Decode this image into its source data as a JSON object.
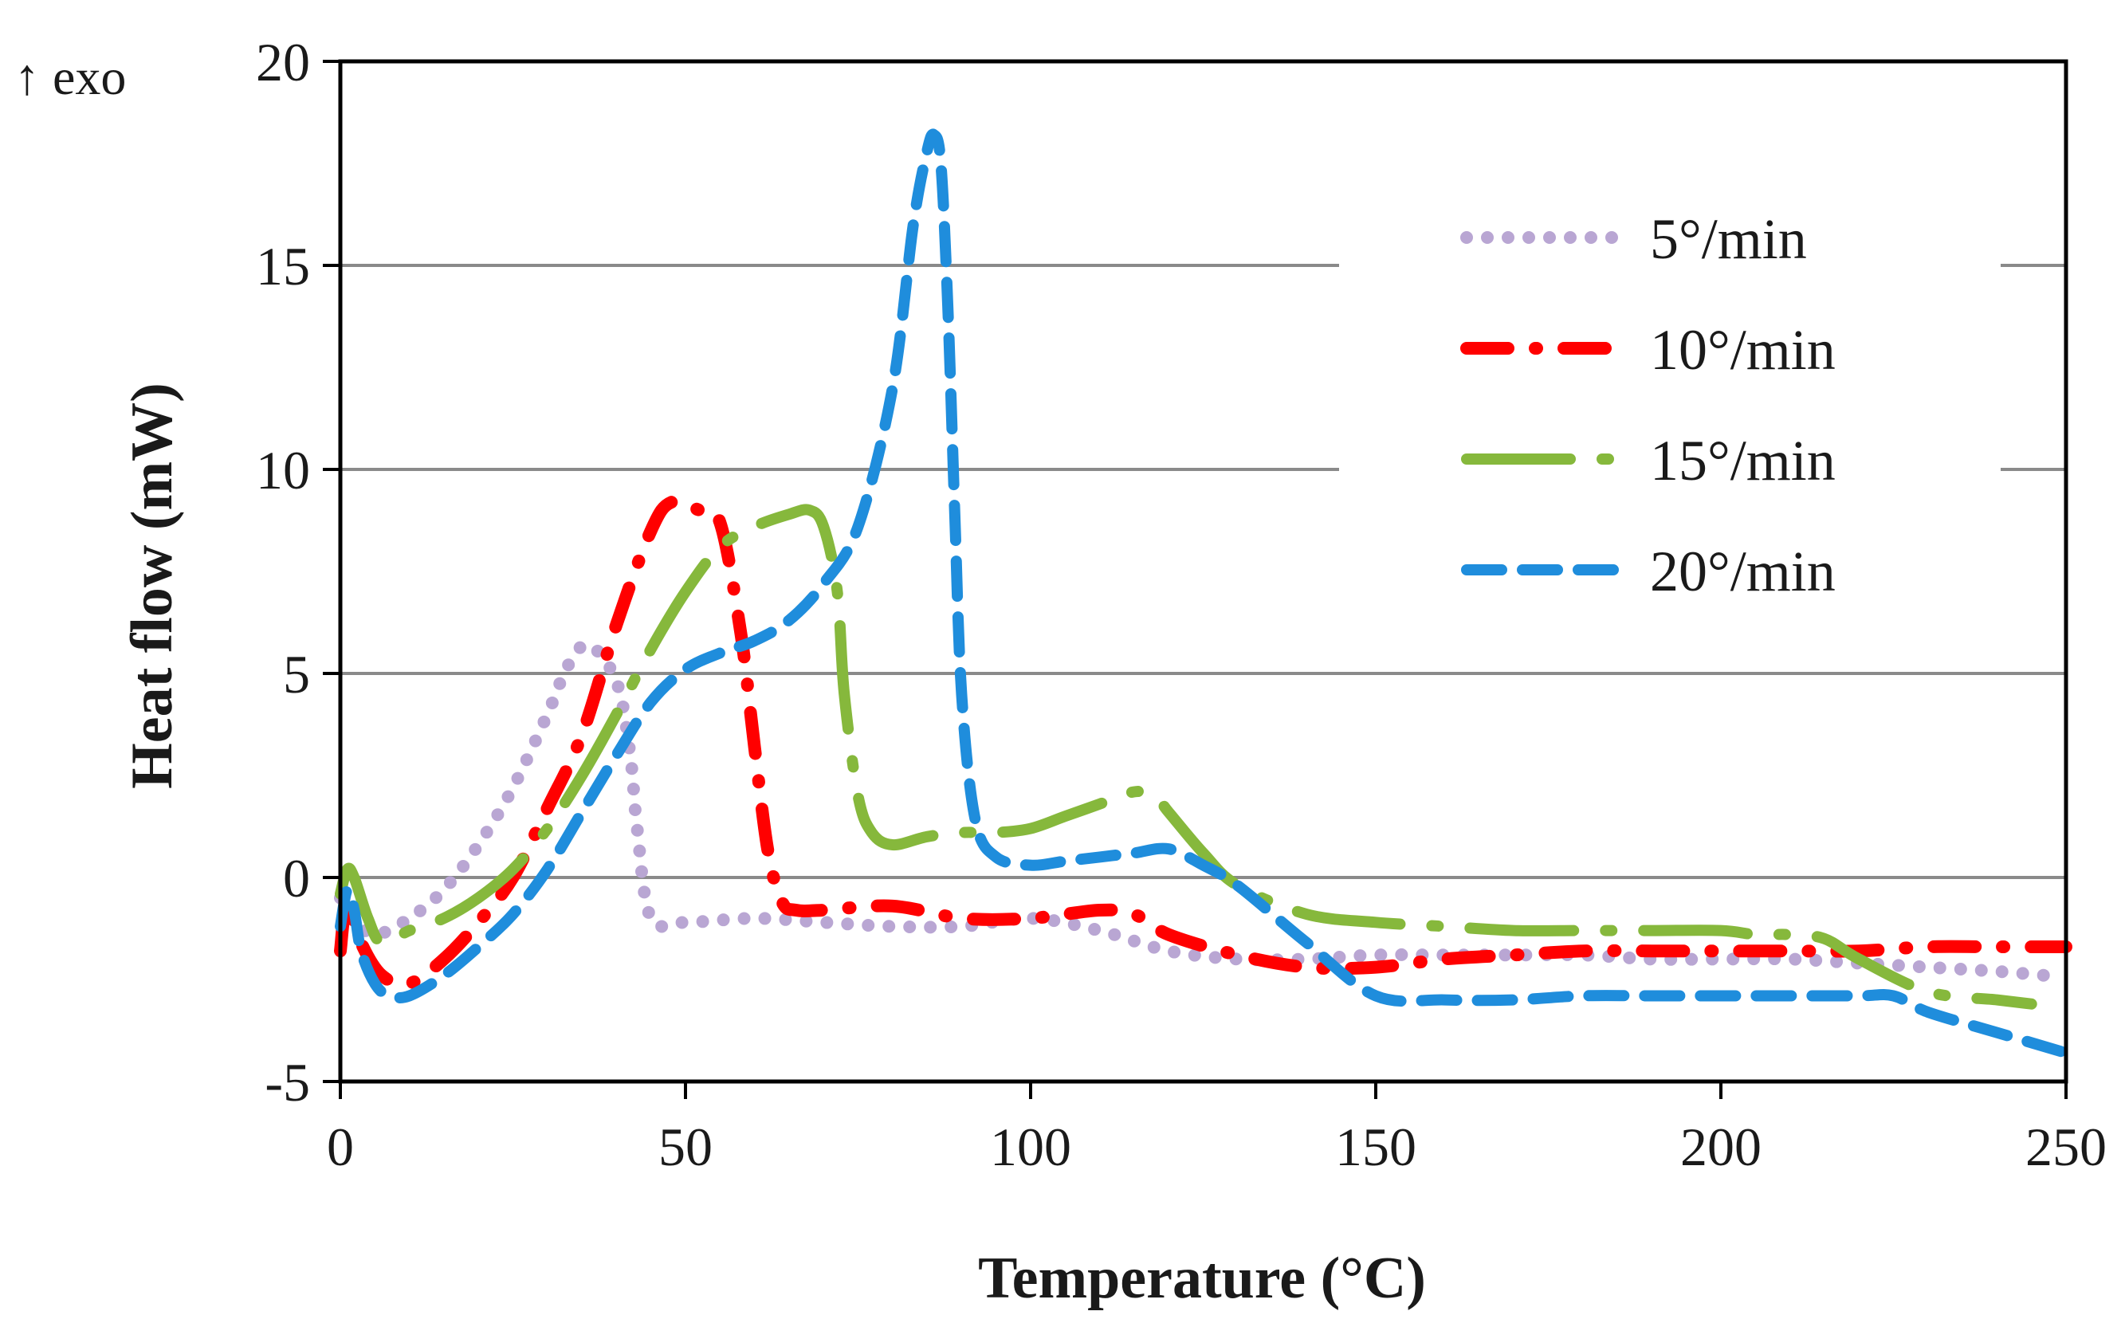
{
  "chart_data": {
    "type": "line",
    "title": "",
    "xlabel": "Temperature (°C)",
    "ylabel": "Heat flow  (mW)",
    "corner_note": "↑ exo",
    "xlim": [
      0,
      250
    ],
    "ylim": [
      -5,
      20
    ],
    "xticks": [
      0,
      50,
      100,
      150,
      200,
      250
    ],
    "yticks": [
      -5,
      0,
      5,
      10,
      15,
      20
    ],
    "xtick_labels": [
      "0",
      "50",
      "100",
      "150",
      "200",
      "250"
    ],
    "ytick_labels": [
      "-5",
      "0",
      "5",
      "10",
      "15",
      "20"
    ],
    "grid": "horizontal",
    "legend_position": "top-right",
    "series": [
      {
        "name": "5°/min",
        "color": "#b9a6d3",
        "style": "dotted",
        "x": [
          0,
          2,
          5,
          10,
          15,
          20,
          25,
          30,
          33,
          36,
          40,
          42,
          43,
          45,
          50,
          60,
          70,
          80,
          90,
          100,
          110,
          120,
          130,
          140,
          150,
          160,
          170,
          180,
          190,
          200,
          210,
          220,
          230,
          240,
          247
        ],
        "y": [
          -0.5,
          -1.0,
          -1.4,
          -1.0,
          -0.3,
          0.8,
          2.2,
          4.0,
          5.2,
          5.7,
          4.8,
          3.0,
          1.2,
          -1.0,
          -1.1,
          -1.0,
          -1.1,
          -1.2,
          -1.2,
          -1.0,
          -1.3,
          -1.8,
          -2.0,
          -2.0,
          -1.9,
          -1.9,
          -1.9,
          -1.9,
          -2.0,
          -2.0,
          -2.0,
          -2.1,
          -2.2,
          -2.3,
          -2.4
        ]
      },
      {
        "name": "10°/min",
        "color": "#ff0000",
        "style": "dash-dot",
        "x": [
          0,
          1,
          3,
          6,
          10,
          15,
          20,
          25,
          30,
          35,
          40,
          45,
          48,
          52,
          55,
          58,
          60,
          62,
          64,
          66,
          70,
          80,
          90,
          100,
          110,
          115,
          120,
          130,
          140,
          150,
          160,
          170,
          180,
          190,
          200,
          210,
          220,
          230,
          240,
          250
        ],
        "y": [
          -1.8,
          -0.6,
          -1.6,
          -2.4,
          -2.6,
          -2.0,
          -1.1,
          0.0,
          1.7,
          3.5,
          6.2,
          8.5,
          9.2,
          9.0,
          8.7,
          6.0,
          3.2,
          0.6,
          -0.6,
          -0.8,
          -0.8,
          -0.7,
          -1.0,
          -1.0,
          -0.8,
          -0.9,
          -1.4,
          -1.9,
          -2.2,
          -2.2,
          -2.0,
          -1.9,
          -1.8,
          -1.8,
          -1.8,
          -1.8,
          -1.8,
          -1.7,
          -1.7,
          -1.7
        ]
      },
      {
        "name": "15°/min",
        "color": "#86b83c",
        "style": "long-dash-dot",
        "x": [
          0,
          1,
          2,
          4,
          6,
          10,
          15,
          20,
          25,
          30,
          35,
          40,
          45,
          50,
          55,
          60,
          65,
          68,
          70,
          72,
          73,
          75,
          77,
          80,
          85,
          90,
          95,
          100,
          105,
          110,
          115,
          118,
          120,
          125,
          130,
          140,
          150,
          160,
          170,
          180,
          190,
          200,
          205,
          210,
          215,
          220,
          230,
          240,
          245
        ],
        "y": [
          -0.4,
          0.2,
          0.0,
          -1.0,
          -1.6,
          -1.3,
          -1.0,
          -0.5,
          0.2,
          1.2,
          2.5,
          4.0,
          5.6,
          7.0,
          8.1,
          8.6,
          8.9,
          9.0,
          8.6,
          7.0,
          4.5,
          2.0,
          1.1,
          0.8,
          1.0,
          1.1,
          1.1,
          1.2,
          1.5,
          1.8,
          2.1,
          2.0,
          1.6,
          0.6,
          -0.2,
          -0.9,
          -1.1,
          -1.2,
          -1.3,
          -1.3,
          -1.3,
          -1.3,
          -1.4,
          -1.4,
          -1.5,
          -2.0,
          -2.8,
          -3.0,
          -3.1
        ]
      },
      {
        "name": "20°/min",
        "color": "#1f8ddc",
        "style": "dashed",
        "x": [
          0,
          1,
          2,
          3,
          5,
          7,
          10,
          15,
          20,
          25,
          30,
          35,
          40,
          45,
          50,
          55,
          60,
          65,
          70,
          75,
          80,
          83,
          85,
          86,
          87,
          88,
          89,
          90,
          92,
          95,
          100,
          105,
          110,
          115,
          120,
          125,
          130,
          140,
          150,
          160,
          170,
          180,
          190,
          200,
          210,
          220,
          225,
          230,
          240,
          250
        ],
        "y": [
          -1.2,
          -0.3,
          -0.8,
          -1.8,
          -2.6,
          -2.9,
          -2.9,
          -2.4,
          -1.7,
          -0.9,
          0.2,
          1.6,
          3.0,
          4.3,
          5.1,
          5.5,
          5.8,
          6.3,
          7.2,
          8.6,
          12.0,
          16.0,
          17.8,
          18.2,
          17.5,
          14.0,
          9.0,
          4.5,
          1.4,
          0.5,
          0.3,
          0.4,
          0.5,
          0.6,
          0.7,
          0.3,
          -0.2,
          -1.6,
          -2.9,
          -3.0,
          -3.0,
          -2.9,
          -2.9,
          -2.9,
          -2.9,
          -2.9,
          -2.9,
          -3.3,
          -3.8,
          -4.3
        ]
      }
    ]
  }
}
